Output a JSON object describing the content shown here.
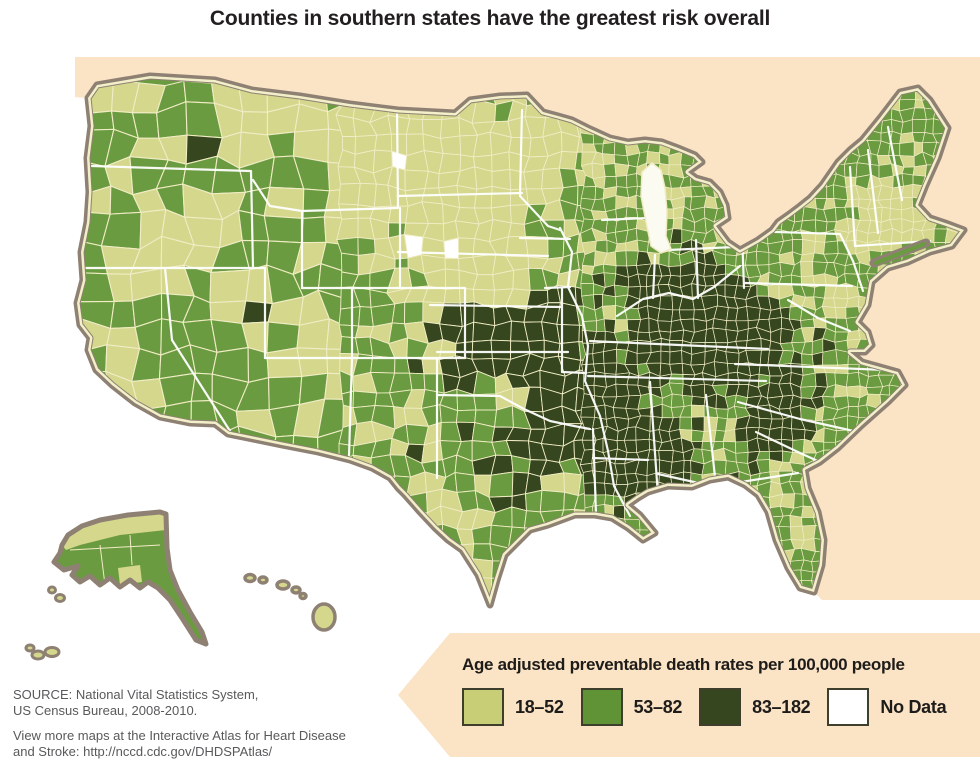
{
  "title": "Counties in southern states have the greatest risk overall",
  "legend": {
    "title": "Age adjusted preventable death rates per 100,000 people",
    "items": [
      {
        "label": "18–52",
        "color": "#C7CE76"
      },
      {
        "label": "53–82",
        "color": "#609336"
      },
      {
        "label": "83–182",
        "color": "#364720"
      },
      {
        "label": "No Data",
        "color": "#FFFFFF"
      }
    ]
  },
  "source": {
    "line1": "SOURCE: National Vital Statistics System,",
    "line2": "US Census Bureau, 2008-2010.",
    "line3": "View more maps at the Interactive Atlas for Heart Disease",
    "line4": "and Stroke: http://nccd.cdc.gov/DHDSPAtlas/"
  },
  "map": {
    "background": "#FBE3C5",
    "ocean": "#FFFFFF",
    "border_color": "#8E8173",
    "inner_coast_line": "#F3EFC9",
    "county_line": "#F0ECC4",
    "state_line": "#FFFFFF",
    "lake_fill": "#FCFBF2",
    "palette": {
      "light": "#D4D78C",
      "medium": "#6B9B40",
      "dark": "#36461E",
      "nodata": "#FFFFFF"
    }
  },
  "chart_data": {
    "type": "choropleth-map",
    "title": "Counties in southern states have the greatest risk overall",
    "measure": "Age adjusted preventable death rates per 100,000 people",
    "geography": "United States counties (with Alaska and Hawaii insets)",
    "classes": [
      {
        "label": "18–52",
        "color": "#C7CE76"
      },
      {
        "label": "53–82",
        "color": "#609336"
      },
      {
        "label": "83–182",
        "color": "#364720"
      },
      {
        "label": "No Data",
        "color": "#FFFFFF"
      }
    ],
    "pattern_note": "Highest-rate (darkest) counties cluster across the South: Oklahoma, Arkansas, Louisiana, Mississippi, Alabama, Tennessee, Kentucky, West Virginia and Georgia; lightest counties cluster in the northern Great Plains and upper Midwest."
  }
}
